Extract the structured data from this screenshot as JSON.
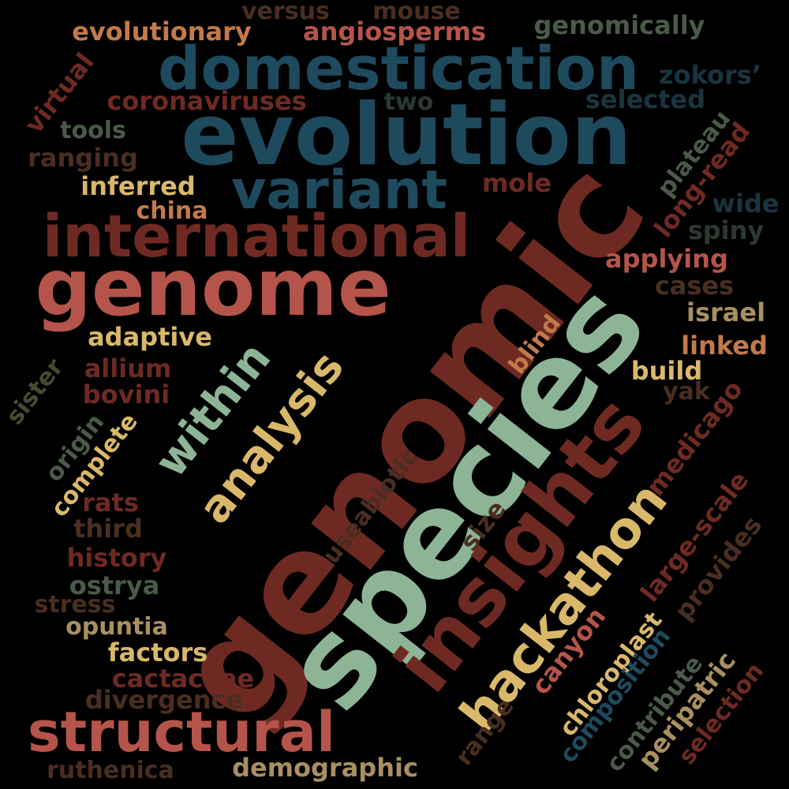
{
  "palette": {
    "salmon": "#b5544a",
    "brick": "#7a3020",
    "navy": "#1e4a5e",
    "sage": "#8db595",
    "gold": "#d9b86a",
    "olive": "#a89060",
    "dark_olive": "#4a5a48",
    "dark_brown": "#4a2e20",
    "maroon": "#6e2a22",
    "tan": "#c27a4a",
    "deep_navy": "#1a3440"
  },
  "words": [
    {
      "text": "genomic",
      "color": "#6e2a22"
    },
    {
      "text": "species",
      "color": "#8db595"
    },
    {
      "text": "evolution",
      "color": "#1e4a5e"
    },
    {
      "text": "genome",
      "color": "#b5544a"
    },
    {
      "text": "insights",
      "color": "#6e2a22"
    },
    {
      "text": "domestication",
      "color": "#1e4a5e"
    },
    {
      "text": "international",
      "color": "#6e2a22"
    },
    {
      "text": "variant",
      "color": "#1e4a5e"
    },
    {
      "text": "structural",
      "color": "#b5544a"
    },
    {
      "text": "hackathon",
      "color": "#d9b86a"
    },
    {
      "text": "analysis",
      "color": "#d9b86a"
    },
    {
      "text": "within",
      "color": "#8db595"
    },
    {
      "text": "evolutionary",
      "color": "#c27a4a"
    },
    {
      "text": "angiosperms",
      "color": "#b5544a"
    },
    {
      "text": "genomically",
      "color": "#4a5a48"
    },
    {
      "text": "versus",
      "color": "#4a2e20"
    },
    {
      "text": "mouse",
      "color": "#4a2e20"
    },
    {
      "text": "coronaviruses",
      "color": "#6e2a22"
    },
    {
      "text": "two",
      "color": "#2a3a30"
    },
    {
      "text": "selected",
      "color": "#1a3440"
    },
    {
      "text": "zokors’",
      "color": "#1a3440"
    },
    {
      "text": "virtual",
      "color": "#6e2a22"
    },
    {
      "text": "tools",
      "color": "#4a5a48"
    },
    {
      "text": "ranging",
      "color": "#4a2e20"
    },
    {
      "text": "inferred",
      "color": "#d9b86a"
    },
    {
      "text": "china",
      "color": "#c27a4a"
    },
    {
      "text": "mole",
      "color": "#6e2a22"
    },
    {
      "text": "plateau",
      "color": "#4a5a48"
    },
    {
      "text": "long-read",
      "color": "#6e2a22"
    },
    {
      "text": "wide",
      "color": "#1a3440"
    },
    {
      "text": "spiny",
      "color": "#2a3a30"
    },
    {
      "text": "applying",
      "color": "#b5544a"
    },
    {
      "text": "cases",
      "color": "#4a2e20"
    },
    {
      "text": "israel",
      "color": "#a89060"
    },
    {
      "text": "linked",
      "color": "#c27a4a"
    },
    {
      "text": "build",
      "color": "#d9b86a"
    },
    {
      "text": "yak",
      "color": "#4a2e20"
    },
    {
      "text": "blind",
      "color": "#c27a4a"
    },
    {
      "text": "adaptive",
      "color": "#d9b86a"
    },
    {
      "text": "allium",
      "color": "#6e2a22"
    },
    {
      "text": "bovini",
      "color": "#6e2a22"
    },
    {
      "text": "sister",
      "color": "#4a4a30"
    },
    {
      "text": "origin",
      "color": "#4a5a48"
    },
    {
      "text": "complete",
      "color": "#d9b86a"
    },
    {
      "text": "rats",
      "color": "#6e2a22"
    },
    {
      "text": "third",
      "color": "#4a2e20"
    },
    {
      "text": "history",
      "color": "#6e2a22"
    },
    {
      "text": "ostrya",
      "color": "#4a5a48"
    },
    {
      "text": "stress",
      "color": "#4a2e20"
    },
    {
      "text": "opuntia",
      "color": "#a89060"
    },
    {
      "text": "factors",
      "color": "#d9b86a"
    },
    {
      "text": "cactaceae",
      "color": "#6e2a22"
    },
    {
      "text": "divergence",
      "color": "#4a2e20"
    },
    {
      "text": "ruthenica",
      "color": "#4a2e20"
    },
    {
      "text": "demographic",
      "color": "#a89060"
    },
    {
      "text": "useabiotic",
      "color": "#4a2e20"
    },
    {
      "text": "size",
      "color": "#4a2e20"
    },
    {
      "text": "medicago",
      "color": "#6e2a22"
    },
    {
      "text": "large-scale",
      "color": "#6e2a22"
    },
    {
      "text": "provides",
      "color": "#4a2e20"
    },
    {
      "text": "canyon",
      "color": "#b5544a"
    },
    {
      "text": "chloroplast",
      "color": "#d9b86a"
    },
    {
      "text": "range",
      "color": "#4a2e20"
    },
    {
      "text": "composition",
      "color": "#1e4a5e"
    },
    {
      "text": "contribute",
      "color": "#4a5a48"
    },
    {
      "text": "peripatric",
      "color": "#a89060"
    },
    {
      "text": "selection",
      "color": "#6e2a22"
    }
  ]
}
